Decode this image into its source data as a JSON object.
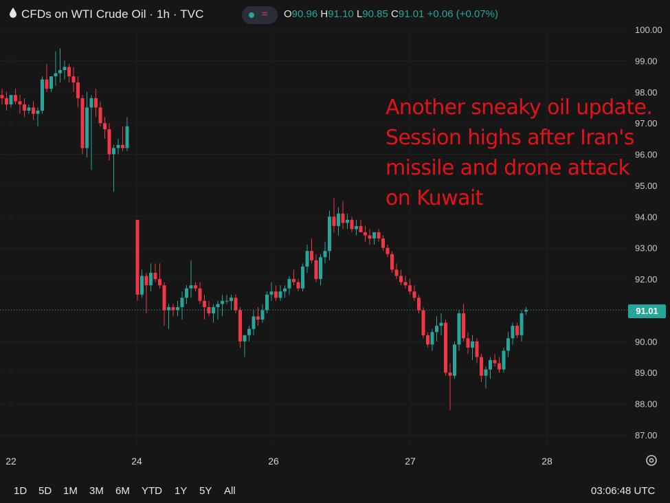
{
  "header": {
    "title": "CFDs on WTI Crude Oil · 1h · TVC",
    "status_wave": "≈",
    "ohlc": {
      "o_label": "O",
      "o_value": "90.96",
      "h_label": "H",
      "h_value": "91.10",
      "l_label": "L",
      "l_value": "90.85",
      "c_label": "C",
      "c_value": "91.01",
      "change": "+0.06 (+0.07%)"
    }
  },
  "chart_data": {
    "type": "candlestick",
    "y_axis": {
      "ticks": [
        "100.00",
        "99.00",
        "98.00",
        "97.00",
        "96.00",
        "95.00",
        "94.00",
        "93.00",
        "92.00",
        "91.00",
        "90.00",
        "89.00",
        "88.00",
        "87.00"
      ],
      "min": 86.5,
      "max": 100.2
    },
    "x_axis": {
      "ticks": [
        "22",
        "24",
        "26",
        "27",
        "28"
      ]
    },
    "last_price": "91.01",
    "colors": {
      "up": "#26a69a",
      "down": "#f23645",
      "grid": "#1f1f1f"
    },
    "candles": [
      {
        "o": 97.9,
        "h": 98.1,
        "l": 97.6,
        "c": 97.8
      },
      {
        "o": 97.8,
        "h": 98.0,
        "l": 97.4,
        "c": 97.6
      },
      {
        "o": 97.6,
        "h": 97.9,
        "l": 97.5,
        "c": 97.9
      },
      {
        "o": 97.9,
        "h": 98.1,
        "l": 97.6,
        "c": 97.7
      },
      {
        "o": 97.7,
        "h": 97.9,
        "l": 97.3,
        "c": 97.6
      },
      {
        "o": 97.6,
        "h": 97.8,
        "l": 97.2,
        "c": 97.4
      },
      {
        "o": 97.4,
        "h": 97.6,
        "l": 97.3,
        "c": 97.5
      },
      {
        "o": 97.5,
        "h": 97.7,
        "l": 97.1,
        "c": 97.3
      },
      {
        "o": 97.3,
        "h": 97.5,
        "l": 96.9,
        "c": 97.4
      },
      {
        "o": 97.4,
        "h": 98.5,
        "l": 97.3,
        "c": 98.4
      },
      {
        "o": 98.4,
        "h": 98.9,
        "l": 98.0,
        "c": 98.1
      },
      {
        "o": 98.1,
        "h": 98.5,
        "l": 98.0,
        "c": 98.5
      },
      {
        "o": 98.5,
        "h": 99.3,
        "l": 98.2,
        "c": 98.6
      },
      {
        "o": 98.6,
        "h": 99.4,
        "l": 98.3,
        "c": 98.7
      },
      {
        "o": 98.7,
        "h": 99.0,
        "l": 98.4,
        "c": 98.8
      },
      {
        "o": 98.8,
        "h": 98.9,
        "l": 98.3,
        "c": 98.5
      },
      {
        "o": 98.5,
        "h": 98.8,
        "l": 98.0,
        "c": 98.3
      },
      {
        "o": 98.3,
        "h": 98.5,
        "l": 97.5,
        "c": 97.8
      },
      {
        "o": 97.8,
        "h": 97.9,
        "l": 96.0,
        "c": 96.2
      },
      {
        "o": 96.2,
        "h": 98.0,
        "l": 95.9,
        "c": 97.5
      },
      {
        "o": 97.5,
        "h": 97.9,
        "l": 95.5,
        "c": 97.8
      },
      {
        "o": 97.8,
        "h": 98.1,
        "l": 97.2,
        "c": 97.5
      },
      {
        "o": 97.5,
        "h": 97.7,
        "l": 96.9,
        "c": 97.0
      },
      {
        "o": 97.0,
        "h": 97.2,
        "l": 96.5,
        "c": 96.8
      },
      {
        "o": 96.8,
        "h": 97.0,
        "l": 95.8,
        "c": 96.0
      },
      {
        "o": 96.0,
        "h": 96.3,
        "l": 94.8,
        "c": 96.2
      },
      {
        "o": 96.2,
        "h": 96.5,
        "l": 96.0,
        "c": 96.3
      },
      {
        "o": 96.3,
        "h": 96.9,
        "l": 96.1,
        "c": 96.2
      },
      {
        "o": 96.2,
        "h": 97.2,
        "l": 96.1,
        "c": 96.9
      },
      {
        "o": 93.9,
        "h": 93.9,
        "l": 91.3,
        "c": 91.5
      },
      {
        "o": 91.5,
        "h": 92.3,
        "l": 91.4,
        "c": 92.1
      },
      {
        "o": 92.1,
        "h": 92.2,
        "l": 90.9,
        "c": 91.8
      },
      {
        "o": 91.8,
        "h": 92.5,
        "l": 91.6,
        "c": 92.2
      },
      {
        "o": 92.2,
        "h": 92.5,
        "l": 91.9,
        "c": 92.0
      },
      {
        "o": 92.0,
        "h": 92.5,
        "l": 91.7,
        "c": 91.8
      },
      {
        "o": 91.8,
        "h": 91.9,
        "l": 90.5,
        "c": 91.0
      },
      {
        "o": 91.0,
        "h": 91.2,
        "l": 90.4,
        "c": 91.1
      },
      {
        "o": 91.1,
        "h": 91.2,
        "l": 90.8,
        "c": 91.0
      },
      {
        "o": 91.0,
        "h": 91.3,
        "l": 90.8,
        "c": 91.1
      },
      {
        "o": 91.1,
        "h": 91.6,
        "l": 90.7,
        "c": 91.4
      },
      {
        "o": 91.4,
        "h": 91.8,
        "l": 91.2,
        "c": 91.7
      },
      {
        "o": 91.7,
        "h": 92.6,
        "l": 91.4,
        "c": 91.8
      },
      {
        "o": 91.8,
        "h": 91.9,
        "l": 91.6,
        "c": 91.7
      },
      {
        "o": 91.7,
        "h": 91.9,
        "l": 91.2,
        "c": 91.3
      },
      {
        "o": 91.3,
        "h": 91.5,
        "l": 90.7,
        "c": 91.1
      },
      {
        "o": 91.1,
        "h": 91.3,
        "l": 90.8,
        "c": 90.9
      },
      {
        "o": 90.9,
        "h": 91.2,
        "l": 90.6,
        "c": 91.1
      },
      {
        "o": 91.1,
        "h": 91.3,
        "l": 90.7,
        "c": 91.2
      },
      {
        "o": 91.2,
        "h": 91.5,
        "l": 90.8,
        "c": 91.3
      },
      {
        "o": 91.3,
        "h": 91.5,
        "l": 91.2,
        "c": 91.3
      },
      {
        "o": 91.3,
        "h": 91.5,
        "l": 91.0,
        "c": 91.4
      },
      {
        "o": 91.4,
        "h": 91.5,
        "l": 90.9,
        "c": 91.0
      },
      {
        "o": 91.0,
        "h": 91.1,
        "l": 89.8,
        "c": 90.0
      },
      {
        "o": 90.0,
        "h": 90.2,
        "l": 89.5,
        "c": 90.2
      },
      {
        "o": 90.2,
        "h": 90.5,
        "l": 90.0,
        "c": 90.4
      },
      {
        "o": 90.4,
        "h": 91.0,
        "l": 90.2,
        "c": 90.8
      },
      {
        "o": 90.8,
        "h": 91.1,
        "l": 90.5,
        "c": 90.7
      },
      {
        "o": 90.7,
        "h": 91.2,
        "l": 90.6,
        "c": 91.0
      },
      {
        "o": 91.0,
        "h": 91.6,
        "l": 90.9,
        "c": 91.5
      },
      {
        "o": 91.5,
        "h": 91.9,
        "l": 91.3,
        "c": 91.6
      },
      {
        "o": 91.6,
        "h": 91.8,
        "l": 91.3,
        "c": 91.4
      },
      {
        "o": 91.4,
        "h": 91.8,
        "l": 91.3,
        "c": 91.6
      },
      {
        "o": 91.6,
        "h": 91.8,
        "l": 91.4,
        "c": 91.7
      },
      {
        "o": 91.7,
        "h": 92.1,
        "l": 91.5,
        "c": 92.0
      },
      {
        "o": 92.0,
        "h": 92.3,
        "l": 91.8,
        "c": 91.9
      },
      {
        "o": 91.9,
        "h": 92.0,
        "l": 91.6,
        "c": 91.7
      },
      {
        "o": 91.7,
        "h": 92.5,
        "l": 91.6,
        "c": 92.4
      },
      {
        "o": 92.4,
        "h": 93.1,
        "l": 92.2,
        "c": 92.9
      },
      {
        "o": 92.9,
        "h": 93.3,
        "l": 92.5,
        "c": 92.6
      },
      {
        "o": 92.6,
        "h": 92.8,
        "l": 91.9,
        "c": 92.0
      },
      {
        "o": 92.0,
        "h": 92.8,
        "l": 91.8,
        "c": 92.7
      },
      {
        "o": 92.7,
        "h": 93.2,
        "l": 92.5,
        "c": 92.9
      },
      {
        "o": 92.9,
        "h": 94.2,
        "l": 92.6,
        "c": 94.0
      },
      {
        "o": 94.0,
        "h": 94.6,
        "l": 93.5,
        "c": 93.7
      },
      {
        "o": 93.7,
        "h": 94.3,
        "l": 93.4,
        "c": 94.1
      },
      {
        "o": 94.1,
        "h": 94.5,
        "l": 93.6,
        "c": 93.8
      },
      {
        "o": 93.8,
        "h": 94.1,
        "l": 93.6,
        "c": 93.9
      },
      {
        "o": 93.9,
        "h": 94.0,
        "l": 93.5,
        "c": 93.6
      },
      {
        "o": 93.6,
        "h": 93.9,
        "l": 93.4,
        "c": 93.7
      },
      {
        "o": 93.7,
        "h": 93.9,
        "l": 93.5,
        "c": 93.5
      },
      {
        "o": 93.5,
        "h": 93.7,
        "l": 93.2,
        "c": 93.4
      },
      {
        "o": 93.4,
        "h": 93.6,
        "l": 93.1,
        "c": 93.3
      },
      {
        "o": 93.3,
        "h": 93.5,
        "l": 93.1,
        "c": 93.5
      },
      {
        "o": 93.5,
        "h": 93.6,
        "l": 93.2,
        "c": 93.3
      },
      {
        "o": 93.3,
        "h": 93.4,
        "l": 92.9,
        "c": 93.0
      },
      {
        "o": 93.0,
        "h": 93.1,
        "l": 92.7,
        "c": 92.8
      },
      {
        "o": 92.8,
        "h": 92.9,
        "l": 92.2,
        "c": 92.3
      },
      {
        "o": 92.3,
        "h": 92.5,
        "l": 92.0,
        "c": 92.1
      },
      {
        "o": 92.1,
        "h": 92.3,
        "l": 91.8,
        "c": 91.9
      },
      {
        "o": 91.9,
        "h": 92.1,
        "l": 91.7,
        "c": 91.8
      },
      {
        "o": 91.8,
        "h": 92.0,
        "l": 91.5,
        "c": 91.6
      },
      {
        "o": 91.6,
        "h": 91.8,
        "l": 91.3,
        "c": 91.4
      },
      {
        "o": 91.4,
        "h": 91.5,
        "l": 90.9,
        "c": 91.0
      },
      {
        "o": 91.0,
        "h": 91.1,
        "l": 90.1,
        "c": 90.2
      },
      {
        "o": 90.2,
        "h": 90.3,
        "l": 89.8,
        "c": 89.9
      },
      {
        "o": 89.9,
        "h": 90.4,
        "l": 89.7,
        "c": 90.3
      },
      {
        "o": 90.3,
        "h": 90.8,
        "l": 90.0,
        "c": 90.5
      },
      {
        "o": 90.5,
        "h": 90.9,
        "l": 90.2,
        "c": 90.6
      },
      {
        "o": 90.6,
        "h": 90.7,
        "l": 88.9,
        "c": 89.0
      },
      {
        "o": 89.0,
        "h": 89.3,
        "l": 87.8,
        "c": 88.9
      },
      {
        "o": 88.9,
        "h": 90.0,
        "l": 88.8,
        "c": 89.9
      },
      {
        "o": 89.9,
        "h": 91.0,
        "l": 89.7,
        "c": 90.9
      },
      {
        "o": 90.9,
        "h": 91.2,
        "l": 90.0,
        "c": 90.1
      },
      {
        "o": 90.1,
        "h": 90.3,
        "l": 89.6,
        "c": 89.8
      },
      {
        "o": 89.8,
        "h": 90.2,
        "l": 89.4,
        "c": 90.0
      },
      {
        "o": 90.0,
        "h": 90.1,
        "l": 89.3,
        "c": 89.5
      },
      {
        "o": 89.5,
        "h": 89.6,
        "l": 88.7,
        "c": 88.9
      },
      {
        "o": 88.9,
        "h": 89.2,
        "l": 88.5,
        "c": 89.1
      },
      {
        "o": 89.1,
        "h": 89.5,
        "l": 88.8,
        "c": 89.4
      },
      {
        "o": 89.4,
        "h": 89.6,
        "l": 89.2,
        "c": 89.3
      },
      {
        "o": 89.3,
        "h": 89.5,
        "l": 89.0,
        "c": 89.1
      },
      {
        "o": 89.1,
        "h": 89.8,
        "l": 89.0,
        "c": 89.7
      },
      {
        "o": 89.7,
        "h": 90.3,
        "l": 89.5,
        "c": 90.1
      },
      {
        "o": 90.1,
        "h": 90.6,
        "l": 89.9,
        "c": 90.5
      },
      {
        "o": 90.5,
        "h": 90.6,
        "l": 90.1,
        "c": 90.2
      },
      {
        "o": 90.2,
        "h": 91.0,
        "l": 90.0,
        "c": 90.9
      },
      {
        "o": 90.96,
        "h": 91.1,
        "l": 90.85,
        "c": 91.01
      }
    ]
  },
  "annotation": "Another sneaky oil update.\nSession highs after Iran's\nmissile and drone attack\non Kuwait",
  "range_buttons": [
    "1D",
    "5D",
    "1M",
    "3M",
    "6M",
    "YTD",
    "1Y",
    "5Y",
    "All"
  ],
  "clock": "03:06:48 UTC",
  "icons": {
    "symbol": "drop-icon",
    "settings": "settings-icon"
  }
}
